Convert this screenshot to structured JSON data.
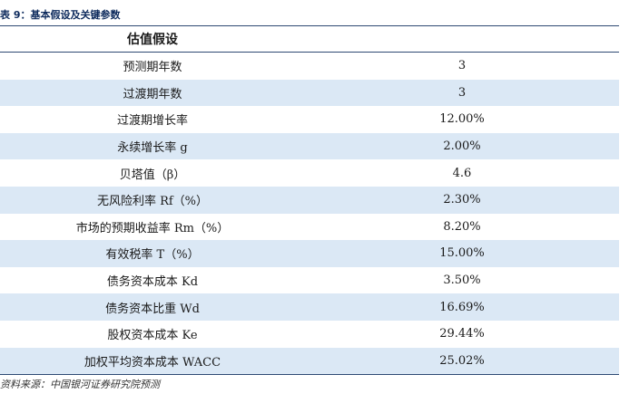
{
  "caption": "表 9：基本假设及关键参数",
  "table": {
    "header": "估值假设",
    "rows": [
      {
        "label": "预测期年数",
        "value": "3"
      },
      {
        "label": "过渡期年数",
        "value": "3"
      },
      {
        "label": "过渡期增长率",
        "value": "12.00%"
      },
      {
        "label": "永续增长率 g",
        "value": "2.00%"
      },
      {
        "label": "贝塔值（β）",
        "value": "4.6"
      },
      {
        "label": "无风险利率 Rf（%）",
        "value": "2.30%"
      },
      {
        "label": "市场的预期收益率 Rm（%）",
        "value": "8.20%"
      },
      {
        "label": "有效税率 T（%）",
        "value": "15.00%"
      },
      {
        "label": "债务资本成本 Kd",
        "value": "3.50%"
      },
      {
        "label": "债务资本比重 Wd",
        "value": "16.69%"
      },
      {
        "label": "股权资本成本 Ke",
        "value": "29.44%"
      },
      {
        "label": "加权平均资本成本 WACC",
        "value": "25.02%"
      }
    ]
  },
  "source": "资料来源：中国银河证券研究院预测",
  "colors": {
    "caption": "#0d2a5c",
    "row_shade": "#dbe8f5",
    "rule": "#2e4a73"
  }
}
